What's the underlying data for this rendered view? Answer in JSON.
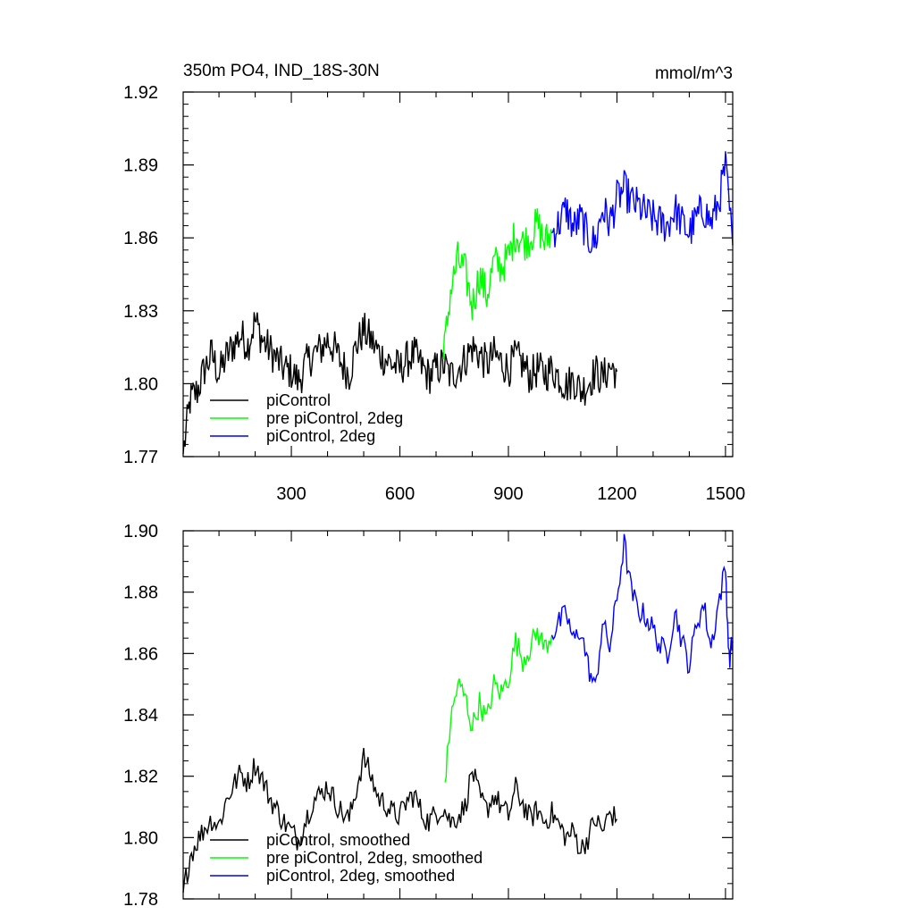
{
  "chart_data": [
    {
      "type": "line",
      "title": "350m PO4, IND_18S-30N",
      "units": "mmol/m^3",
      "xlabel": "",
      "ylabel": "",
      "xlim": [
        1,
        1520
      ],
      "ylim": [
        1.77,
        1.92
      ],
      "x_ticks": [
        "300",
        "600",
        "900",
        "1200",
        "1500"
      ],
      "y_ticks": [
        "1.77",
        "1.80",
        "1.83",
        "1.86",
        "1.89",
        "1.92"
      ],
      "legend_position": "bottom-left",
      "series": [
        {
          "name": "piControl",
          "color": "#000000",
          "x": [
            1,
            20,
            40,
            60,
            80,
            100,
            120,
            140,
            160,
            180,
            200,
            220,
            240,
            260,
            280,
            300,
            320,
            340,
            360,
            380,
            400,
            420,
            440,
            460,
            480,
            500,
            520,
            540,
            560,
            580,
            600,
            620,
            640,
            660,
            680,
            700,
            720,
            740,
            760,
            780,
            800,
            820,
            840,
            860,
            880,
            900,
            920,
            940,
            960,
            980,
            1000,
            1020,
            1040,
            1060,
            1080,
            1100,
            1120,
            1140,
            1160,
            1180,
            1200
          ],
          "values": [
            1.771,
            1.793,
            1.797,
            1.806,
            1.812,
            1.804,
            1.811,
            1.816,
            1.82,
            1.816,
            1.826,
            1.818,
            1.814,
            1.81,
            1.806,
            1.805,
            1.801,
            1.808,
            1.812,
            1.814,
            1.818,
            1.814,
            1.808,
            1.804,
            1.816,
            1.822,
            1.818,
            1.813,
            1.81,
            1.808,
            1.806,
            1.81,
            1.812,
            1.807,
            1.803,
            1.806,
            1.808,
            1.803,
            1.806,
            1.81,
            1.815,
            1.812,
            1.808,
            1.812,
            1.809,
            1.806,
            1.811,
            1.808,
            1.803,
            1.806,
            1.804,
            1.806,
            1.803,
            1.799,
            1.802,
            1.797,
            1.8,
            1.805,
            1.802,
            1.807,
            1.805
          ]
        },
        {
          "name": "pre piControl, 2deg",
          "color": "#00ff00",
          "x": [
            720,
            740,
            760,
            780,
            800,
            820,
            840,
            860,
            880,
            900,
            920,
            940,
            960,
            980,
            1000,
            1020
          ],
          "values": [
            1.81,
            1.838,
            1.851,
            1.846,
            1.832,
            1.845,
            1.836,
            1.85,
            1.848,
            1.852,
            1.862,
            1.858,
            1.86,
            1.866,
            1.858,
            1.862
          ]
        },
        {
          "name": "piControl, 2deg",
          "color": "#0000ff",
          "x": [
            1020,
            1040,
            1060,
            1080,
            1100,
            1120,
            1140,
            1160,
            1180,
            1200,
            1220,
            1240,
            1260,
            1280,
            1300,
            1320,
            1340,
            1360,
            1380,
            1400,
            1420,
            1440,
            1460,
            1480,
            1500,
            1520
          ],
          "values": [
            1.862,
            1.866,
            1.872,
            1.864,
            1.868,
            1.86,
            1.858,
            1.872,
            1.866,
            1.876,
            1.88,
            1.875,
            1.873,
            1.87,
            1.868,
            1.866,
            1.865,
            1.872,
            1.866,
            1.862,
            1.868,
            1.872,
            1.866,
            1.874,
            1.889,
            1.857
          ]
        }
      ]
    },
    {
      "type": "line",
      "xlim": [
        1,
        1520
      ],
      "ylim": [
        1.78,
        1.9
      ],
      "y_ticks": [
        "1.78",
        "1.80",
        "1.82",
        "1.84",
        "1.86",
        "1.88",
        "1.90"
      ],
      "legend_position": "bottom-left",
      "series": [
        {
          "name": "piControl, smoothed",
          "color": "#000000",
          "x": [
            1,
            20,
            40,
            60,
            80,
            100,
            120,
            140,
            160,
            180,
            200,
            220,
            240,
            260,
            280,
            300,
            320,
            340,
            360,
            380,
            400,
            420,
            440,
            460,
            480,
            500,
            520,
            540,
            560,
            580,
            600,
            620,
            640,
            660,
            680,
            700,
            720,
            740,
            760,
            780,
            800,
            820,
            840,
            860,
            880,
            900,
            920,
            940,
            960,
            980,
            1000,
            1020,
            1040,
            1060,
            1080,
            1100,
            1120,
            1140,
            1160,
            1180,
            1200
          ],
          "values": [
            1.782,
            1.794,
            1.799,
            1.803,
            1.806,
            1.804,
            1.812,
            1.817,
            1.821,
            1.818,
            1.824,
            1.819,
            1.813,
            1.809,
            1.805,
            1.802,
            1.799,
            1.806,
            1.812,
            1.814,
            1.817,
            1.812,
            1.808,
            1.806,
            1.816,
            1.826,
            1.82,
            1.813,
            1.811,
            1.808,
            1.807,
            1.812,
            1.814,
            1.808,
            1.805,
            1.808,
            1.81,
            1.805,
            1.807,
            1.81,
            1.822,
            1.813,
            1.809,
            1.814,
            1.81,
            1.807,
            1.816,
            1.811,
            1.806,
            1.809,
            1.805,
            1.808,
            1.804,
            1.8,
            1.802,
            1.796,
            1.8,
            1.806,
            1.802,
            1.808,
            1.806
          ]
        },
        {
          "name": "pre piControl, 2deg, smoothed",
          "color": "#00ff00",
          "x": [
            725,
            740,
            760,
            780,
            800,
            820,
            840,
            860,
            880,
            900,
            920,
            940,
            960,
            980,
            1000,
            1020
          ],
          "values": [
            1.818,
            1.838,
            1.85,
            1.846,
            1.836,
            1.844,
            1.838,
            1.85,
            1.847,
            1.852,
            1.864,
            1.858,
            1.862,
            1.867,
            1.862,
            1.866
          ]
        },
        {
          "name": "piControl, 2deg, smoothed",
          "color": "#0000ff",
          "x": [
            1020,
            1040,
            1060,
            1080,
            1100,
            1120,
            1140,
            1160,
            1180,
            1200,
            1220,
            1240,
            1260,
            1280,
            1300,
            1320,
            1340,
            1360,
            1380,
            1400,
            1420,
            1440,
            1460,
            1480,
            1500,
            1510,
            1520
          ],
          "values": [
            1.866,
            1.87,
            1.873,
            1.864,
            1.868,
            1.856,
            1.848,
            1.87,
            1.862,
            1.878,
            1.896,
            1.88,
            1.874,
            1.872,
            1.868,
            1.862,
            1.86,
            1.874,
            1.864,
            1.856,
            1.87,
            1.876,
            1.862,
            1.876,
            1.888,
            1.858,
            1.864
          ]
        }
      ]
    }
  ]
}
